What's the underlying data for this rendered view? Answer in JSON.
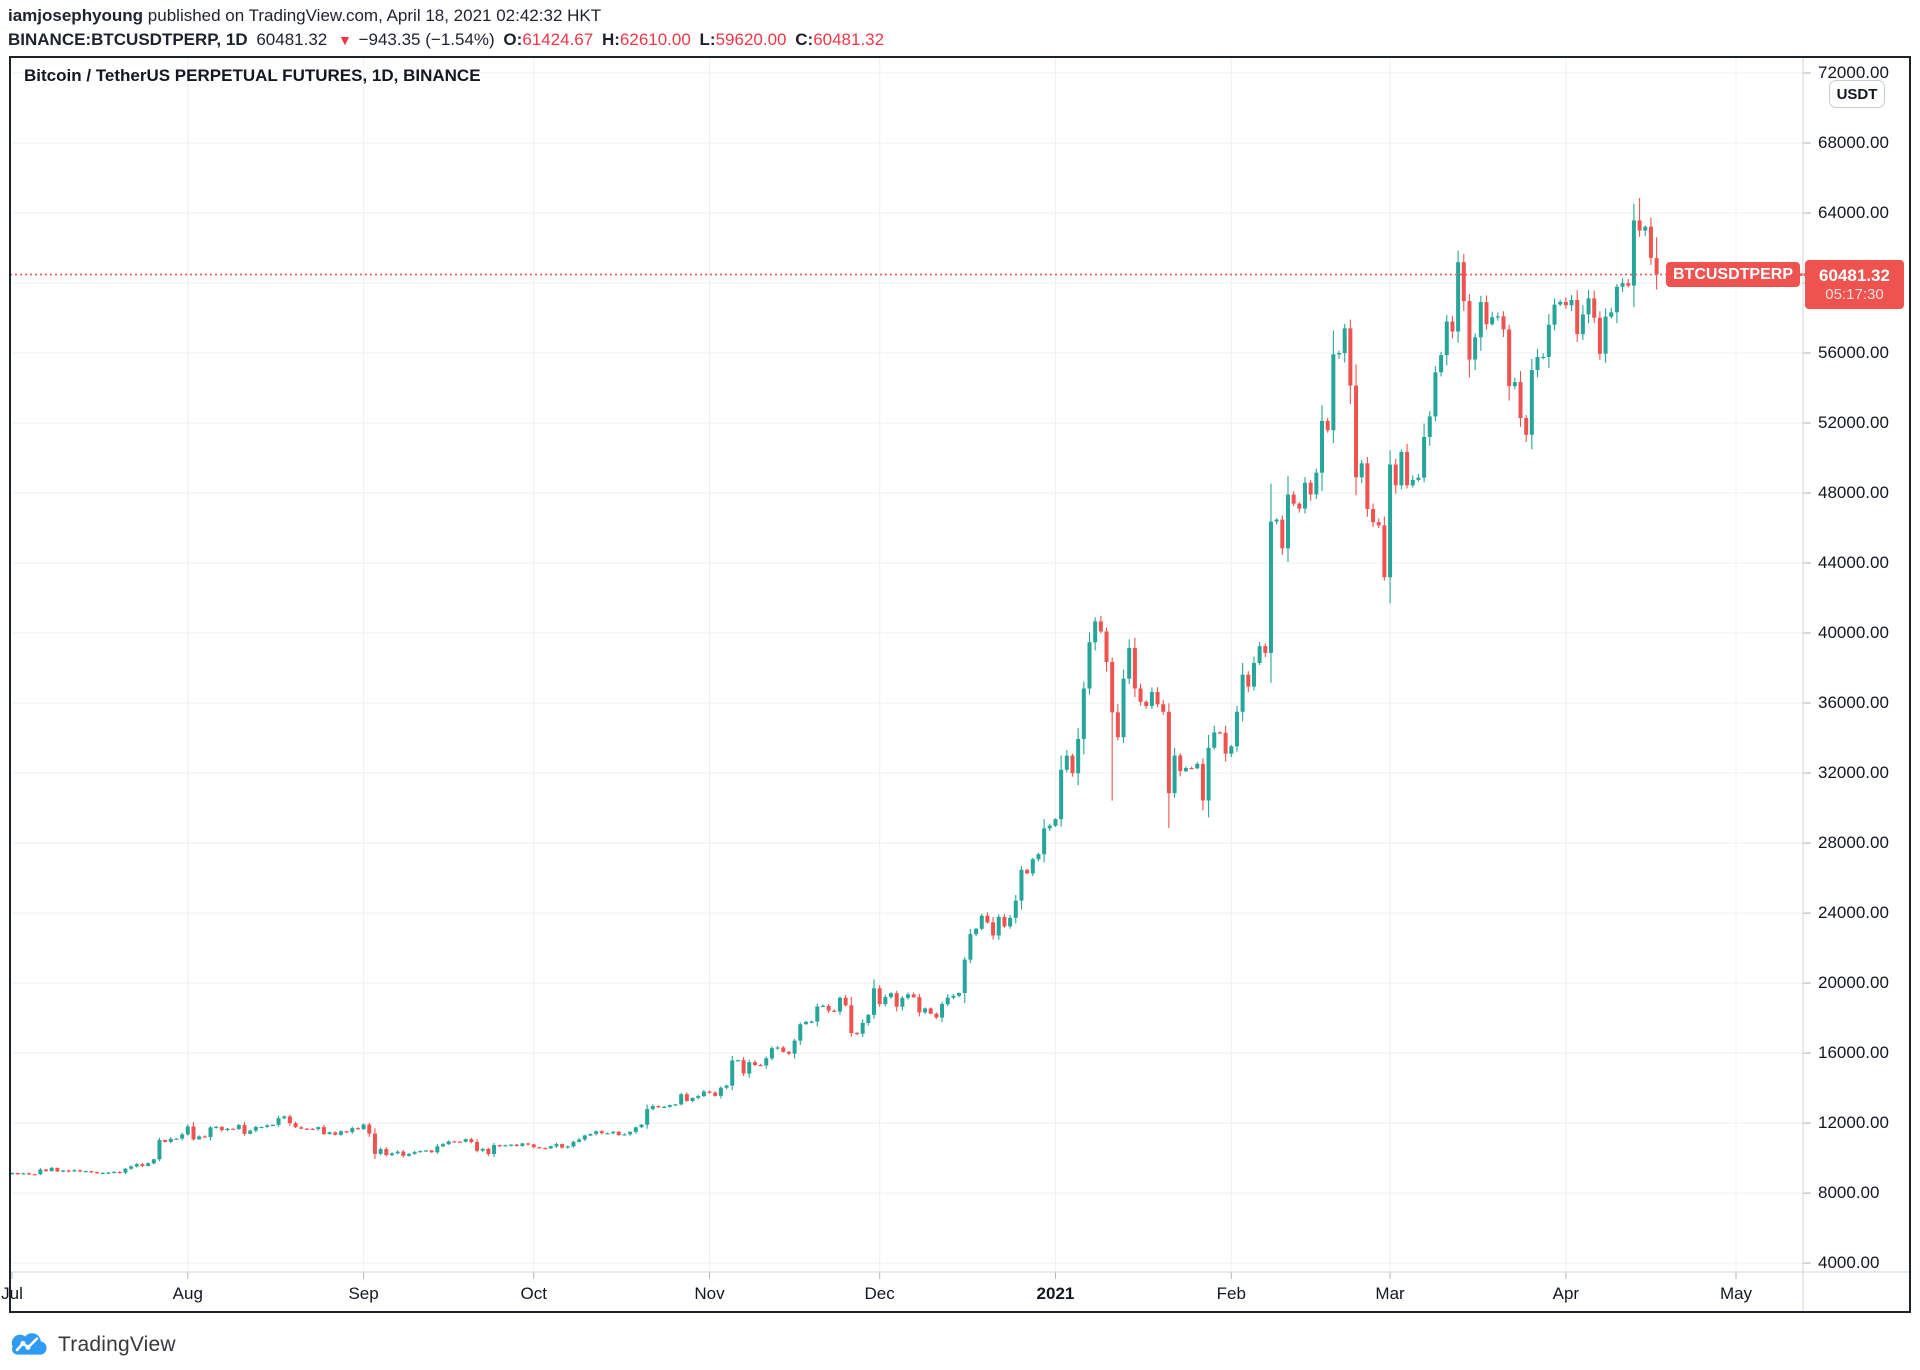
{
  "header": {
    "author": "iamjosephyoung",
    "published_suffix": " published on TradingView.com, April 18, 2021 02:42:32 HKT",
    "symbol_interval": "BINANCE:BTCUSDTPERP, 1D",
    "last_price": "60481.32",
    "down_arrow": "▼",
    "change": "−943.35 (−1.54%)",
    "o_label": "O:",
    "o_value": "61424.67",
    "h_label": "H:",
    "h_value": "62610.00",
    "l_label": "L:",
    "l_value": "59620.00",
    "c_label": "C:",
    "c_value": "60481.32"
  },
  "chart": {
    "title": "Bitcoin / TetherUS PERPETUAL FUTURES, 1D, BINANCE",
    "unit_badge": "USDT"
  },
  "price_label": {
    "symbol": "BTCUSDTPERP",
    "price": "60481.32",
    "countdown": "05:17:30"
  },
  "footer": {
    "brand": "TradingView"
  },
  "chart_data": {
    "type": "candlestick",
    "symbol": "BINANCE:BTCUSDTPERP",
    "interval": "1D",
    "title": "Bitcoin / TetherUS PERPETUAL FUTURES, 1D, BINANCE",
    "start_date": "2020-07-01",
    "end_date": "2021-04-17",
    "current_price": 60481.32,
    "last_candle": {
      "open": 61424.67,
      "high": 62610.0,
      "low": 59620.0,
      "close": 60481.32
    },
    "daily_closes": [
      9145,
      9087,
      9132,
      9081,
      9073,
      9344,
      9252,
      9436,
      9238,
      9288,
      9234,
      9303,
      9242,
      9255,
      9197,
      9133,
      9154,
      9170,
      9208,
      9160,
      9390,
      9520,
      9650,
      9550,
      9700,
      9930,
      11030,
      10920,
      11100,
      11110,
      11350,
      11810,
      11070,
      11240,
      11200,
      11750,
      11780,
      11600,
      11680,
      11660,
      11890,
      11390,
      11570,
      11780,
      11780,
      11870,
      11900,
      12280,
      12380,
      11990,
      11760,
      11680,
      11670,
      11650,
      11770,
      11370,
      11470,
      11330,
      11530,
      11480,
      11710,
      11650,
      11920,
      11400,
      10240,
      10510,
      10170,
      10270,
      10370,
      10130,
      10240,
      10340,
      10400,
      10440,
      10330,
      10670,
      10790,
      10950,
      10940,
      10930,
      11080,
      10920,
      10420,
      10530,
      10230,
      10740,
      10690,
      10730,
      10770,
      10690,
      10840,
      10780,
      10620,
      10570,
      10550,
      10670,
      10800,
      10600,
      10670,
      10930,
      11060,
      11290,
      11380,
      11530,
      11420,
      11420,
      11500,
      11320,
      11360,
      11500,
      11760,
      11910,
      12800,
      12970,
      12930,
      12930,
      13030,
      13070,
      13650,
      13270,
      13440,
      13540,
      13800,
      13740,
      13550,
      14020,
      14140,
      15580,
      15590,
      14830,
      15480,
      15320,
      15290,
      15700,
      16280,
      16320,
      16070,
      15960,
      16710,
      17650,
      17780,
      17800,
      18660,
      18700,
      18420,
      18370,
      19160,
      18730,
      17150,
      17110,
      17720,
      18180,
      19700,
      18800,
      19200,
      19420,
      18650,
      19150,
      19350,
      19190,
      18320,
      18550,
      18250,
      18030,
      18800,
      19170,
      19270,
      19430,
      21340,
      22800,
      23100,
      23850,
      23470,
      22720,
      23780,
      23240,
      23730,
      24710,
      26470,
      26270,
      27080,
      27360,
      28840,
      28990,
      29370,
      32190,
      32990,
      31990,
      33950,
      36830,
      39470,
      40670,
      40090,
      38350,
      35470,
      34050,
      37390,
      39150,
      36830,
      36070,
      35830,
      36630,
      35930,
      35500,
      30850,
      33000,
      32110,
      32290,
      32270,
      32520,
      30430,
      33440,
      34320,
      34300,
      33110,
      33530,
      35500,
      37620,
      36940,
      38290,
      39250,
      38870,
      46370,
      46480,
      44840,
      47910,
      47390,
      47110,
      48590,
      47920,
      49160,
      52120,
      51590,
      55920,
      56000,
      57410,
      54140,
      48900,
      49700,
      47090,
      46340,
      46150,
      43190,
      49630,
      48440,
      50350,
      48440,
      48750,
      48880,
      51210,
      52380,
      54900,
      55880,
      57800,
      57230,
      61190,
      58970,
      55630,
      56900,
      58910,
      57650,
      58050,
      58100,
      57350,
      54110,
      54340,
      52290,
      51330,
      55030,
      55780,
      55780,
      57620,
      58770,
      58920,
      58730,
      59030,
      57080,
      58210,
      59120,
      58020,
      55960,
      58080,
      58330,
      59790,
      59990,
      59850,
      63580,
      63000,
      63220,
      61440,
      60481.32
    ],
    "wick_overrides": {
      "194": {
        "low": 30420
      },
      "204": {
        "low": 28850
      },
      "242": {
        "low": 43000
      },
      "255": {
        "high": 61844
      },
      "287": {
        "high": 64854
      }
    },
    "y_ticks": [
      4000,
      8000,
      12000,
      16000,
      20000,
      24000,
      28000,
      32000,
      36000,
      40000,
      44000,
      48000,
      52000,
      56000,
      60000,
      64000,
      68000,
      72000
    ],
    "ylim": [
      3490,
      72915
    ],
    "x_ticks": [
      {
        "label": "Jul",
        "day": 0
      },
      {
        "label": "Aug",
        "day": 31
      },
      {
        "label": "Sep",
        "day": 62
      },
      {
        "label": "Oct",
        "day": 92
      },
      {
        "label": "Nov",
        "day": 123
      },
      {
        "label": "Dec",
        "day": 153
      },
      {
        "label": "2021",
        "day": 184,
        "bold": true
      },
      {
        "label": "Feb",
        "day": 215
      },
      {
        "label": "Mar",
        "day": 243
      },
      {
        "label": "Apr",
        "day": 274
      },
      {
        "label": "May",
        "day": 304
      }
    ],
    "grid": true,
    "legend": "none",
    "up_color": "#26a69a",
    "down_color": "#ef5350",
    "price_line_color": "#ef5350"
  }
}
